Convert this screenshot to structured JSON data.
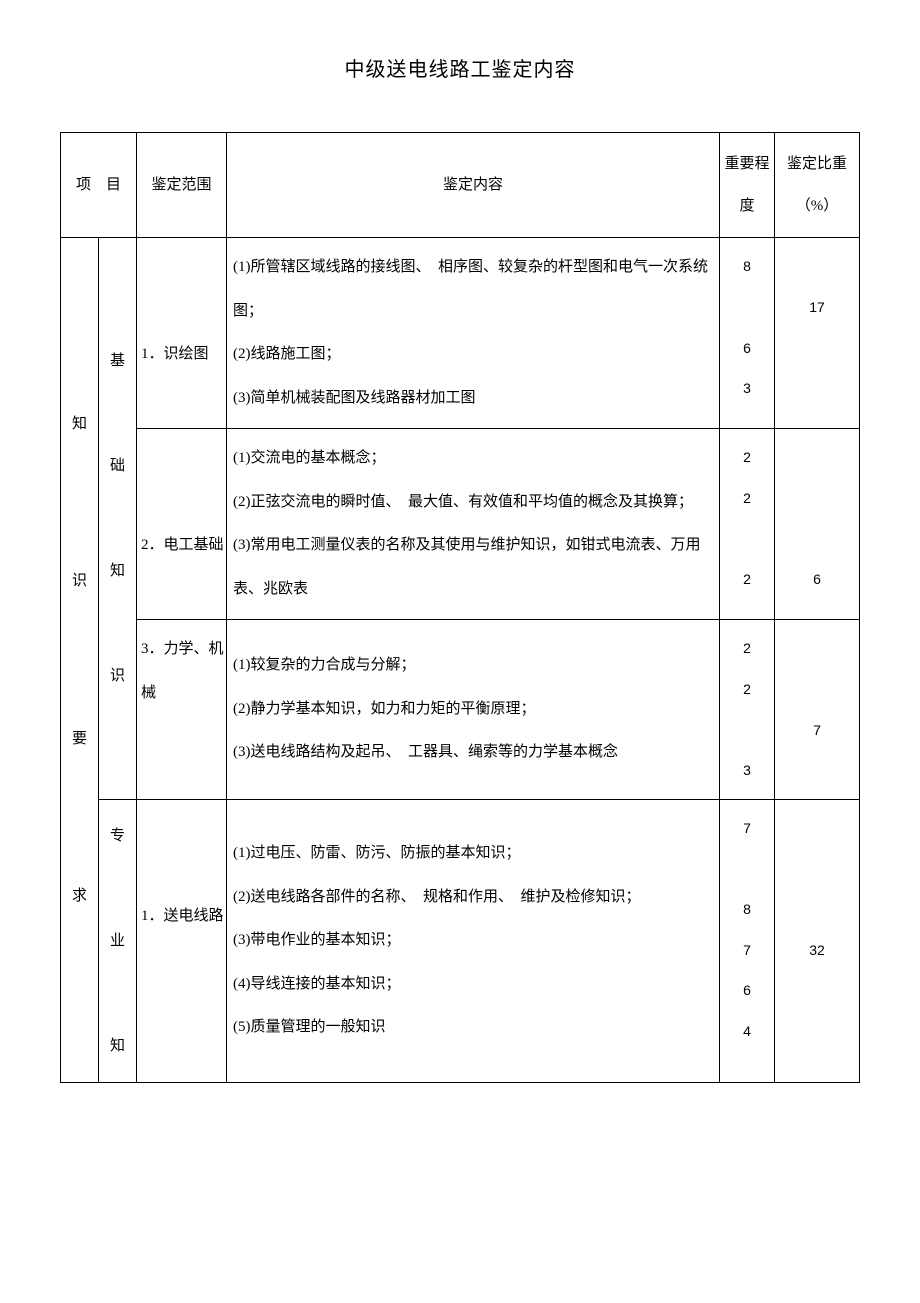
{
  "title": "中级送电线路工鉴定内容",
  "headers": {
    "project": "项　目",
    "scope": "鉴定范围",
    "content": "鉴定内容",
    "importance": "重要程度",
    "weight": "鉴定比重（%）"
  },
  "col1": {
    "r1": "知",
    "r2": "识",
    "r3": "要",
    "r4": "求"
  },
  "col2": {
    "g1a": "基",
    "g1b": "础",
    "g1c": "知",
    "g1d": "识",
    "g2a": "专",
    "g2b": "业",
    "g2c": "知"
  },
  "scopes": {
    "s1": "1．识绘图",
    "s2": "2．电工基础",
    "s3": "3．力学、机械",
    "s4": "1．送电线路"
  },
  "contents": {
    "c1": "(1)所管辖区域线路的接线图、　相序图、较复杂的杆型图和电气一次系统图；\n(2)线路施工图；\n(3)简单机械装配图及线路器材加工图",
    "c2": "(1)交流电的基本概念；\n(2)正弦交流电的瞬时值、　最大值、有效值和平均值的概念及其换算；\n(3)常用电工测量仪表的名称及其使用与维护知识，如钳式电流表、万用表、兆欧表",
    "c3": "(1)较复杂的力合成与分解；\n(2)静力学基本知识，如力和力矩的平衡原理；\n(3)送电线路结构及起吊、　工器具、绳索等的力学基本概念",
    "c4": "(1)过电压、防雷、防污、防振的基本知识；\n(2)送电线路各部件的名称、　规格和作用、　维护及检修知识；\n(3)带电作业的基本知识；\n(4)导线连接的基本知识；\n(5)质量管理的一般知识"
  },
  "importance": {
    "i1": "8\n\n6\n3",
    "i2": "2\n2\n\n2",
    "i3": "2\n2\n\n3",
    "i4": "7\n\n8\n7\n6\n4"
  },
  "weights": {
    "w1": "\n17",
    "w2": "\n\n\n6",
    "w3": "\n\n7",
    "w4": "\n\n\n32"
  }
}
